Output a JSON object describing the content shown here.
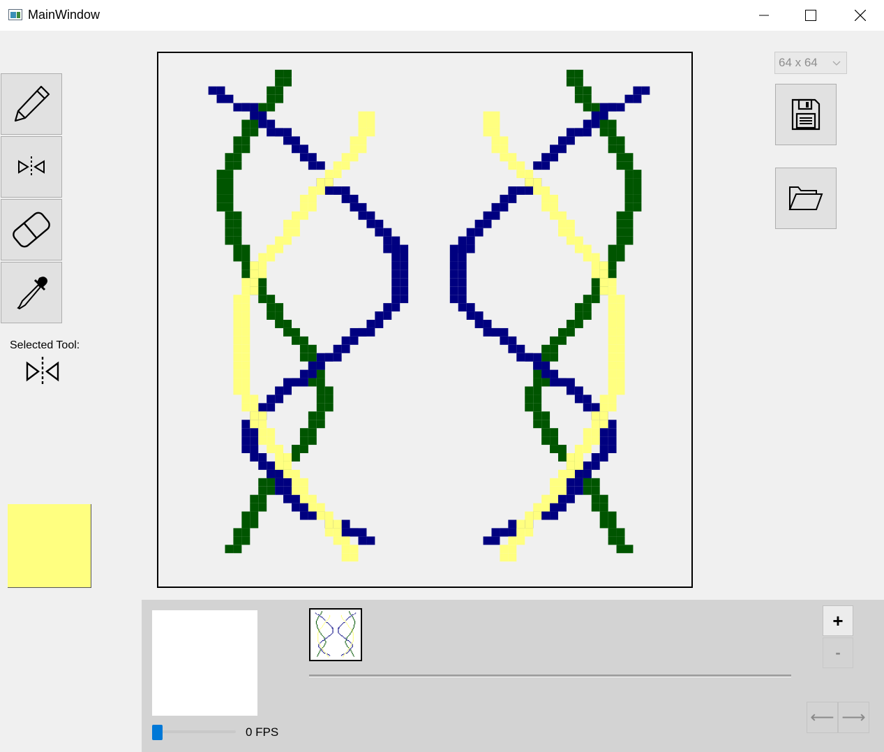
{
  "window": {
    "title": "MainWindow"
  },
  "tools": {
    "items": [
      {
        "name": "pencil",
        "icon": "pencil-icon"
      },
      {
        "name": "mirror",
        "icon": "mirror-icon"
      },
      {
        "name": "eraser",
        "icon": "eraser-icon"
      },
      {
        "name": "eyedropper",
        "icon": "eyedropper-icon"
      }
    ],
    "selected_label": "Selected Tool:",
    "selected_icon": "mirror-icon"
  },
  "color": {
    "selected": "#ffff80"
  },
  "canvas": {
    "grid_size": "64 x 64",
    "palette": {
      "navy": "#000080",
      "green": "#005500",
      "yellow": "#ffff80"
    }
  },
  "actions": {
    "save_icon": "floppy-disk-icon",
    "open_icon": "folder-open-icon"
  },
  "animation": {
    "fps_value": 0,
    "fps_label": "0 FPS",
    "add_frame_label": "+",
    "remove_frame_label": "-",
    "prev_label": "⟵",
    "next_label": "⟶"
  }
}
